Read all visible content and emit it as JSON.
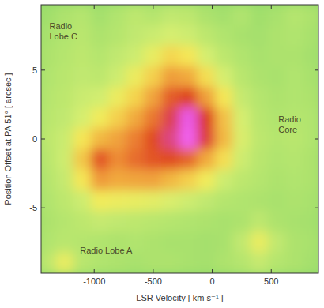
{
  "chart_data": {
    "type": "heatmap",
    "x_label": "LSR Velocity [ km s⁻¹ ]",
    "y_label": "Position Offset at PA 51° [ arcsec ]",
    "x": [
      -1400,
      -1250,
      -1100,
      -950,
      -800,
      -650,
      -500,
      -350,
      -200,
      -50,
      100,
      250,
      400,
      550,
      700,
      850
    ],
    "y": [
      9,
      7.5,
      6,
      4.5,
      3,
      1.5,
      0,
      -1.5,
      -3,
      -4.5,
      -6,
      -7.5,
      -9
    ],
    "values": [
      [
        0.5,
        0.8,
        1.0,
        0.6,
        0.9,
        1.2,
        1.0,
        1.3,
        1.2,
        0.8,
        0.6,
        0.9,
        0.5,
        0.7,
        1.0,
        0.8
      ],
      [
        0.7,
        0.9,
        1.1,
        0.8,
        1.0,
        1.3,
        1.5,
        1.8,
        1.6,
        1.2,
        0.9,
        0.7,
        0.6,
        0.8,
        0.9,
        0.7
      ],
      [
        0.8,
        1.0,
        1.2,
        1.0,
        1.3,
        1.6,
        2.2,
        3.0,
        2.6,
        1.8,
        1.2,
        0.9,
        0.7,
        0.8,
        0.8,
        0.6
      ],
      [
        0.9,
        1.1,
        1.3,
        1.2,
        1.6,
        2.3,
        3.2,
        4.5,
        4.2,
        2.8,
        1.8,
        1.1,
        0.8,
        0.7,
        0.9,
        0.7
      ],
      [
        1.0,
        1.2,
        1.5,
        1.7,
        2.3,
        3.1,
        4.4,
        6.2,
        6.8,
        4.5,
        2.6,
        1.4,
        1.0,
        0.8,
        0.9,
        0.8
      ],
      [
        1.1,
        1.3,
        1.8,
        2.4,
        3.2,
        4.2,
        5.6,
        7.4,
        9.0,
        7.0,
        3.6,
        1.8,
        1.1,
        0.9,
        1.0,
        0.9
      ],
      [
        1.2,
        1.5,
        2.6,
        3.8,
        4.4,
        5.4,
        6.6,
        7.8,
        9.3,
        7.2,
        3.8,
        1.9,
        1.2,
        1.0,
        1.1,
        0.9
      ],
      [
        1.1,
        1.6,
        3.4,
        6.4,
        5.0,
        5.8,
        6.4,
        6.6,
        6.0,
        4.2,
        2.8,
        1.6,
        1.1,
        0.9,
        1.0,
        0.8
      ],
      [
        1.0,
        1.4,
        2.6,
        4.6,
        4.2,
        4.3,
        4.4,
        3.8,
        3.2,
        2.4,
        1.6,
        1.2,
        1.0,
        0.8,
        0.9,
        0.8
      ],
      [
        0.9,
        1.2,
        1.6,
        2.4,
        2.3,
        2.2,
        2.1,
        1.9,
        1.6,
        1.3,
        1.0,
        0.9,
        0.8,
        0.7,
        0.8,
        0.7
      ],
      [
        0.8,
        1.0,
        1.2,
        1.4,
        1.3,
        1.2,
        1.1,
        1.0,
        0.9,
        0.8,
        0.7,
        0.8,
        1.2,
        0.8,
        0.7,
        0.6
      ],
      [
        0.9,
        1.1,
        1.0,
        0.9,
        0.8,
        0.9,
        0.8,
        0.7,
        0.7,
        0.6,
        0.7,
        1.3,
        2.2,
        1.3,
        0.8,
        0.7
      ],
      [
        1.2,
        2.2,
        1.1,
        0.9,
        0.8,
        0.7,
        0.8,
        0.8,
        0.7,
        0.6,
        0.8,
        1.0,
        1.4,
        1.0,
        0.8,
        0.6
      ]
    ],
    "value_range": [
      0,
      10
    ],
    "xlim": [
      -1450,
      900
    ],
    "ylim": [
      -9.75,
      9.75
    ],
    "xticks": [
      -1000,
      -500,
      0,
      500
    ],
    "yticks": [
      -5,
      0,
      5
    ],
    "grid": false,
    "annotations": [
      {
        "text": "Radio Lobe C",
        "x": -1380,
        "y": 8
      },
      {
        "text": "Radio Core",
        "x": 560,
        "y": 1.2
      },
      {
        "text": "Radio Lobe A",
        "x": -1120,
        "y": -8.3
      }
    ]
  }
}
